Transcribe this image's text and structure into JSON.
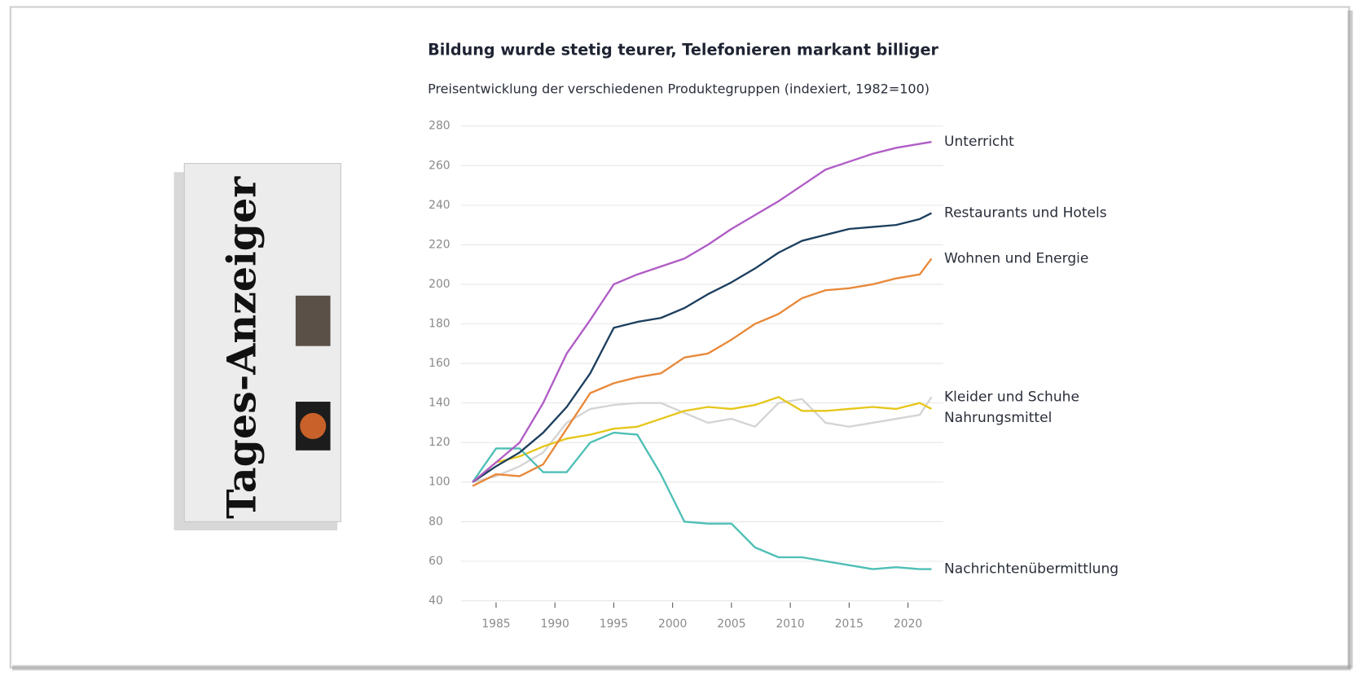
{
  "newspaper": {
    "masthead": "Tages-Anzeiger"
  },
  "chart_data": {
    "type": "line",
    "title": "Bildung wurde stetig teurer, Telefonieren markant billiger",
    "subtitle": "Preisentwicklung der verschiedenen Produktegruppen (indexiert, 1982=100)",
    "x": [
      1983,
      1985,
      1987,
      1989,
      1991,
      1993,
      1995,
      1997,
      1999,
      2001,
      2003,
      2005,
      2007,
      2009,
      2011,
      2013,
      2015,
      2017,
      2019,
      2021,
      2022
    ],
    "xlim": [
      1982,
      2023
    ],
    "xticks": [
      1985,
      1990,
      1995,
      2000,
      2005,
      2010,
      2015,
      2020
    ],
    "ylim": [
      40,
      280
    ],
    "yticks": [
      40,
      60,
      80,
      100,
      120,
      140,
      160,
      180,
      200,
      220,
      240,
      260,
      280
    ],
    "grid": true,
    "series": [
      {
        "name": "Unterricht",
        "color": "#b05cc6",
        "values": [
          100,
          110,
          120,
          140,
          165,
          182,
          200,
          205,
          209,
          213,
          220,
          228,
          235,
          242,
          250,
          258,
          262,
          266,
          269,
          271,
          272
        ]
      },
      {
        "name": "Restaurants und Hotels",
        "color": "#1d3f5e",
        "values": [
          100,
          108,
          115,
          125,
          138,
          155,
          178,
          181,
          183,
          188,
          195,
          201,
          208,
          216,
          222,
          225,
          228,
          229,
          230,
          233,
          236
        ]
      },
      {
        "name": "Wohnen und Energie",
        "color": "#e8893a",
        "values": [
          98,
          104,
          103,
          109,
          127,
          145,
          150,
          153,
          155,
          163,
          165,
          172,
          180,
          185,
          193,
          197,
          198,
          200,
          203,
          205,
          213
        ]
      },
      {
        "name": "Kleider und Schuhe",
        "color": "#d4d4d4",
        "values": [
          100,
          103,
          108,
          115,
          130,
          137,
          139,
          140,
          140,
          135,
          130,
          132,
          128,
          140,
          142,
          130,
          128,
          130,
          132,
          134,
          143
        ]
      },
      {
        "name": "Nahrungsmittel",
        "color": "#e6c619",
        "values": [
          100,
          110,
          113,
          118,
          122,
          124,
          127,
          128,
          132,
          136,
          138,
          137,
          139,
          143,
          136,
          136,
          137,
          138,
          137,
          140,
          137
        ]
      },
      {
        "name": "Nachrichtenübermittlung",
        "color": "#4ebfb5",
        "values": [
          100,
          117,
          117,
          105,
          105,
          120,
          125,
          124,
          104,
          80,
          79,
          79,
          67,
          62,
          62,
          60,
          58,
          56,
          57,
          56,
          56
        ]
      }
    ]
  }
}
